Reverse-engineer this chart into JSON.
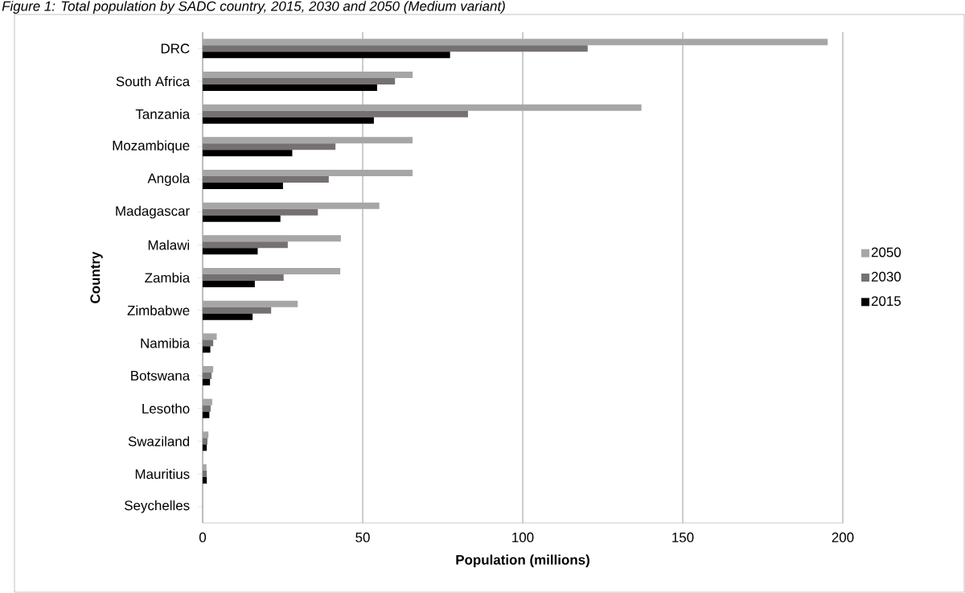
{
  "chart_data": {
    "type": "bar",
    "orientation": "horizontal",
    "title": "Figure 1: Total population by SADC country, 2015, 2030 and 2050 (Medium variant)",
    "xlabel": "Population (millions)",
    "ylabel": "Country",
    "categories": [
      "DRC",
      "South Africa",
      "Tanzania",
      "Mozambique",
      "Angola",
      "Madagascar",
      "Malawi",
      "Zambia",
      "Zimbabwe",
      "Namibia",
      "Botswana",
      "Lesotho",
      "Swaziland",
      "Mauritius",
      "Seychelles"
    ],
    "series": [
      {
        "name": "2050",
        "color": "#a6a6a6",
        "values": [
          195.3,
          65.6,
          137.1,
          65.6,
          65.6,
          55.2,
          43.2,
          43.0,
          29.7,
          4.4,
          3.3,
          3.0,
          1.8,
          1.2,
          null
        ]
      },
      {
        "name": "2030",
        "color": "#767171",
        "values": [
          120.3,
          60.1,
          82.9,
          41.5,
          39.4,
          36.0,
          26.6,
          25.3,
          21.4,
          3.3,
          2.8,
          2.5,
          1.5,
          1.3,
          null
        ]
      },
      {
        "name": "2015",
        "color": "#000000",
        "values": [
          77.3,
          54.5,
          53.5,
          28.0,
          25.1,
          24.3,
          17.2,
          16.3,
          15.6,
          2.4,
          2.3,
          2.1,
          1.3,
          1.3,
          null
        ]
      }
    ],
    "xlim": [
      0,
      200
    ],
    "xticks": [
      0,
      50,
      100,
      150,
      200
    ],
    "grid": "x",
    "legend": "right"
  }
}
